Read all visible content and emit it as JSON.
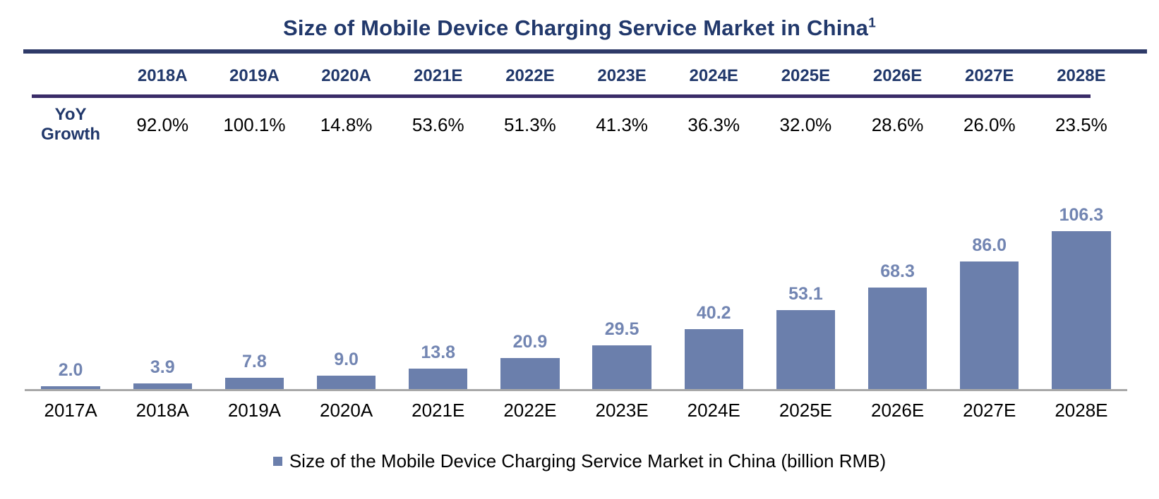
{
  "title": {
    "text": "Size of Mobile Device Charging Service Market in China",
    "superscript": "1"
  },
  "table": {
    "row_label_line1": "YoY",
    "row_label_line2": "Growth",
    "columns": [
      {
        "year": "2018A",
        "growth": "92.0%"
      },
      {
        "year": "2019A",
        "growth": "100.1%"
      },
      {
        "year": "2020A",
        "growth": "14.8%"
      },
      {
        "year": "2021E",
        "growth": "53.6%"
      },
      {
        "year": "2022E",
        "growth": "51.3%"
      },
      {
        "year": "2023E",
        "growth": "41.3%"
      },
      {
        "year": "2024E",
        "growth": "36.3%"
      },
      {
        "year": "2025E",
        "growth": "32.0%"
      },
      {
        "year": "2026E",
        "growth": "28.6%"
      },
      {
        "year": "2027E",
        "growth": "26.0%"
      },
      {
        "year": "2028E",
        "growth": "23.5%"
      }
    ]
  },
  "chart_data": {
    "type": "bar",
    "title": "Size of Mobile Device Charging Service Market in China",
    "categories": [
      "2017A",
      "2018A",
      "2019A",
      "2020A",
      "2021E",
      "2022E",
      "2023E",
      "2024E",
      "2025E",
      "2026E",
      "2027E",
      "2028E"
    ],
    "values": [
      2.0,
      3.9,
      7.8,
      9.0,
      13.8,
      20.9,
      29.5,
      40.2,
      53.1,
      68.3,
      86.0,
      106.3
    ],
    "value_labels": [
      "2.0",
      "3.9",
      "7.8",
      "9.0",
      "13.8",
      "20.9",
      "29.5",
      "40.2",
      "53.1",
      "68.3",
      "86.0",
      "106.3"
    ],
    "unit": "billion RMB",
    "ylim": [
      0,
      110
    ],
    "grid": false,
    "legend_position": "bottom",
    "yoy_growth_row": {
      "label": "YoY Growth",
      "categories": [
        "2018A",
        "2019A",
        "2020A",
        "2021E",
        "2022E",
        "2023E",
        "2024E",
        "2025E",
        "2026E",
        "2027E",
        "2028E"
      ],
      "values_pct": [
        92.0,
        100.1,
        14.8,
        53.6,
        51.3,
        41.3,
        36.3,
        32.0,
        28.6,
        26.0,
        23.5
      ]
    }
  },
  "legend": {
    "label": "Size of the Mobile Device Charging Service Market in China (billion RMB)"
  },
  "colors": {
    "title_navy": "#21386b",
    "rule_top": "#2e3a68",
    "rule_table": "#3a2c68",
    "bar_fill": "#6b7fac",
    "bar_value_label": "#7285b2",
    "axis_line": "#a8a8a8",
    "body_text": "#000000"
  }
}
